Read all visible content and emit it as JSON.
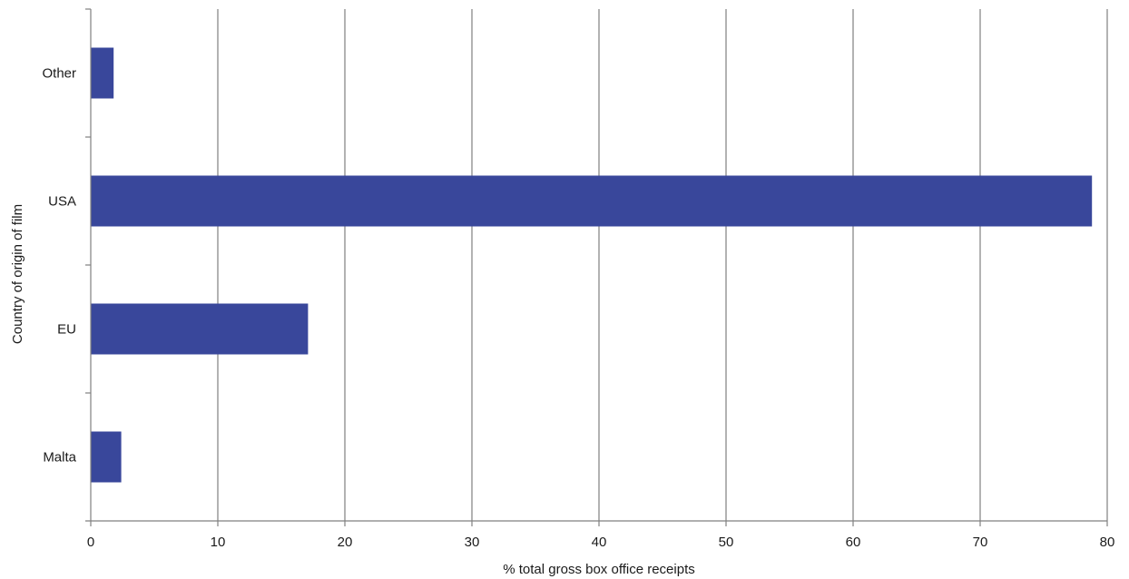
{
  "chart_data": {
    "type": "bar",
    "orientation": "horizontal",
    "categories": [
      "Malta",
      "EU",
      "USA",
      "Other"
    ],
    "values": [
      2.4,
      17.1,
      78.8,
      1.8
    ],
    "xlabel": "% total gross box office receipts",
    "ylabel": "Country of origin of film",
    "xlim": [
      0,
      80
    ],
    "xticks": [
      0,
      10,
      20,
      30,
      40,
      50,
      60,
      70,
      80
    ],
    "grid": true,
    "bar_color": "#39479b",
    "grid_color": "#808080"
  }
}
